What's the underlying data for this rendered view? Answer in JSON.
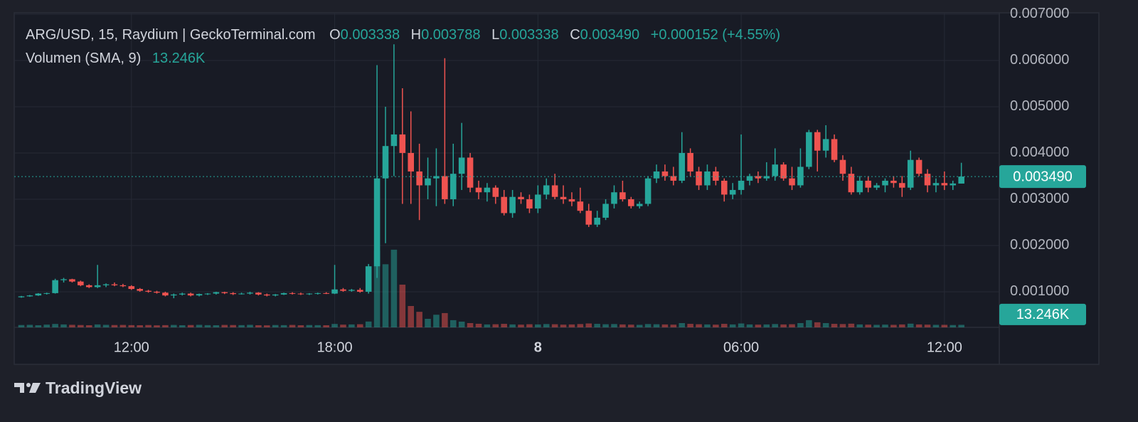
{
  "chart_data": {
    "type": "candlestick",
    "header": {
      "symbol": "ARG/USD, 15, Raydium | GeckoTerminal.com",
      "o_label": "O",
      "o": "0.003338",
      "h_label": "H",
      "h": "0.003788",
      "l_label": "L",
      "l": "0.003338",
      "c_label": "C",
      "c": "0.003490",
      "change": "+0.000152 (+4.55%)"
    },
    "volume_title": "Volumen (SMA, 9)",
    "volume_sma": {
      "value": 13246,
      "label": "13.246K"
    },
    "last_label": "0.003490",
    "footer": "TradingView",
    "up_color": "#26a69a",
    "down_color": "#ef5350",
    "grid": true,
    "x": [
      8.75,
      9,
      9.25,
      9.5,
      9.75,
      10,
      10.25,
      10.5,
      10.75,
      11,
      11.25,
      11.5,
      11.75,
      12,
      12.25,
      12.5,
      12.75,
      13,
      13.25,
      13.5,
      13.75,
      14,
      14.25,
      14.5,
      14.75,
      15,
      15.25,
      15.5,
      15.75,
      16,
      16.25,
      16.5,
      16.75,
      17,
      17.25,
      17.5,
      17.75,
      18,
      18.25,
      18.5,
      18.75,
      19,
      19.25,
      19.5,
      19.75,
      20,
      20.25,
      20.5,
      20.75,
      21,
      21.25,
      21.5,
      21.75,
      22,
      22.25,
      22.5,
      22.75,
      23,
      23.25,
      23.5,
      23.75,
      24,
      24.25,
      24.5,
      24.75,
      25,
      25.25,
      25.5,
      25.75,
      26,
      26.25,
      26.5,
      26.75,
      27,
      27.25,
      27.5,
      27.75,
      28,
      28.25,
      28.5,
      28.75,
      29,
      29.25,
      29.5,
      29.75,
      30,
      30.25,
      30.5,
      30.75,
      31,
      31.25,
      31.5,
      31.75,
      32,
      32.25,
      32.5,
      32.75,
      33,
      33.25,
      33.5,
      33.75,
      34,
      34.25,
      34.5,
      34.75,
      35,
      35.25,
      35.5,
      35.75,
      36,
      36.25,
      36.5
    ],
    "open": [
      0.00088,
      0.0009,
      0.00092,
      0.00096,
      0.00097,
      0.00125,
      0.00127,
      0.00122,
      0.00114,
      0.0011,
      0.00114,
      0.00116,
      0.00114,
      0.00112,
      0.00106,
      0.00102,
      0.001,
      0.00098,
      0.00092,
      0.00094,
      0.00096,
      0.00092,
      0.00095,
      0.00096,
      0.00099,
      0.00097,
      0.00095,
      0.00096,
      0.00098,
      0.00094,
      0.00092,
      0.00094,
      0.00097,
      0.00096,
      0.00095,
      0.00096,
      0.00097,
      0.00096,
      0.00105,
      0.00102,
      0.00104,
      0.001,
      0.00155,
      0.00345,
      0.00415,
      0.0044,
      0.004,
      0.0036,
      0.0033,
      0.00345,
      0.0035,
      0.003,
      0.00355,
      0.0039,
      0.00325,
      0.00315,
      0.00325,
      0.00305,
      0.0027,
      0.00305,
      0.003,
      0.0028,
      0.0031,
      0.0033,
      0.00305,
      0.003,
      0.00295,
      0.00275,
      0.00245,
      0.0026,
      0.0029,
      0.00315,
      0.003,
      0.00285,
      0.0029,
      0.00345,
      0.0036,
      0.0035,
      0.0034,
      0.004,
      0.0036,
      0.0033,
      0.0036,
      0.0034,
      0.0031,
      0.0032,
      0.0034,
      0.0035,
      0.00345,
      0.0035,
      0.00375,
      0.00345,
      0.0033,
      0.0037,
      0.00445,
      0.00405,
      0.0043,
      0.00385,
      0.00355,
      0.00315,
      0.0034,
      0.00325,
      0.0033,
      0.0034,
      0.00335,
      0.00325,
      0.00385,
      0.00355,
      0.0033,
      0.00335,
      0.0033,
      0.003338
    ],
    "high": [
      0.00091,
      0.00093,
      0.00097,
      0.00098,
      0.00128,
      0.0013,
      0.00128,
      0.00124,
      0.00116,
      0.00158,
      0.00118,
      0.0012,
      0.00117,
      0.00114,
      0.00108,
      0.00104,
      0.00102,
      0.001,
      0.00096,
      0.00098,
      0.00098,
      0.00096,
      0.00097,
      0.001,
      0.001,
      0.00099,
      0.00098,
      0.001,
      0.00099,
      0.00096,
      0.00095,
      0.00098,
      0.00099,
      0.00098,
      0.00097,
      0.00098,
      0.00099,
      0.00158,
      0.00108,
      0.00106,
      0.00108,
      0.0016,
      0.0059,
      0.005,
      0.00635,
      0.0054,
      0.0049,
      0.0042,
      0.0039,
      0.0041,
      0.00605,
      0.0042,
      0.00465,
      0.004,
      0.0034,
      0.00335,
      0.0033,
      0.0032,
      0.0032,
      0.00315,
      0.0031,
      0.0033,
      0.00345,
      0.00355,
      0.0033,
      0.00315,
      0.00325,
      0.0029,
      0.00275,
      0.003,
      0.0033,
      0.0034,
      0.00305,
      0.00295,
      0.0035,
      0.00375,
      0.00375,
      0.0037,
      0.00445,
      0.0041,
      0.0037,
      0.00375,
      0.0037,
      0.00345,
      0.00335,
      0.0044,
      0.00355,
      0.0036,
      0.0038,
      0.0041,
      0.0038,
      0.0037,
      0.0041,
      0.0045,
      0.0045,
      0.0046,
      0.0044,
      0.00395,
      0.0037,
      0.0035,
      0.0035,
      0.00335,
      0.00345,
      0.0035,
      0.0035,
      0.00405,
      0.0039,
      0.00365,
      0.00345,
      0.0036,
      0.0034,
      0.003788
    ],
    "low": [
      0.00087,
      0.00089,
      0.00091,
      0.00094,
      0.00096,
      0.0012,
      0.0012,
      0.00112,
      0.00108,
      0.00108,
      0.0011,
      0.00112,
      0.0011,
      0.00104,
      0.001,
      0.00098,
      0.00096,
      0.0009,
      0.00086,
      0.00092,
      0.0009,
      0.0009,
      0.00093,
      0.00094,
      0.00095,
      0.00093,
      0.00094,
      0.00094,
      0.00092,
      0.0009,
      0.0009,
      0.00093,
      0.00094,
      0.00093,
      0.00093,
      0.00094,
      0.00095,
      0.00095,
      0.001,
      0.001,
      0.00098,
      0.00096,
      0.0013,
      0.00205,
      0.0035,
      0.0029,
      0.0029,
      0.00255,
      0.003,
      0.00285,
      0.0029,
      0.00285,
      0.0032,
      0.00315,
      0.003,
      0.00295,
      0.0029,
      0.00265,
      0.0026,
      0.0029,
      0.0027,
      0.0027,
      0.003,
      0.003,
      0.0029,
      0.00285,
      0.0027,
      0.0024,
      0.0024,
      0.00255,
      0.0028,
      0.00295,
      0.0028,
      0.0028,
      0.00285,
      0.00335,
      0.0034,
      0.0033,
      0.00335,
      0.0035,
      0.0032,
      0.0032,
      0.0033,
      0.00295,
      0.003,
      0.0031,
      0.0033,
      0.00335,
      0.0034,
      0.0034,
      0.0034,
      0.0032,
      0.00325,
      0.00365,
      0.0036,
      0.0039,
      0.0038,
      0.0034,
      0.0031,
      0.0031,
      0.00315,
      0.0032,
      0.00315,
      0.00325,
      0.00305,
      0.0032,
      0.0035,
      0.00315,
      0.00315,
      0.0032,
      0.0032,
      0.003338
    ],
    "close": [
      0.0009,
      0.00092,
      0.00096,
      0.00097,
      0.00125,
      0.00127,
      0.00122,
      0.00114,
      0.0011,
      0.00114,
      0.00116,
      0.00114,
      0.00112,
      0.00106,
      0.00102,
      0.001,
      0.00098,
      0.00092,
      0.00094,
      0.00096,
      0.00092,
      0.00095,
      0.00096,
      0.00099,
      0.00097,
      0.00095,
      0.00096,
      0.00098,
      0.00094,
      0.00092,
      0.00094,
      0.00097,
      0.00096,
      0.00095,
      0.00096,
      0.00097,
      0.00096,
      0.00105,
      0.00102,
      0.00104,
      0.001,
      0.00155,
      0.00345,
      0.00415,
      0.0044,
      0.004,
      0.0036,
      0.0033,
      0.00345,
      0.0035,
      0.003,
      0.00355,
      0.0039,
      0.00325,
      0.00315,
      0.00325,
      0.00305,
      0.0027,
      0.00305,
      0.003,
      0.0028,
      0.0031,
      0.0033,
      0.00305,
      0.003,
      0.00295,
      0.00275,
      0.00245,
      0.0026,
      0.0029,
      0.00315,
      0.003,
      0.00285,
      0.0029,
      0.00345,
      0.0036,
      0.0035,
      0.0034,
      0.004,
      0.0036,
      0.0033,
      0.0036,
      0.0034,
      0.0031,
      0.0032,
      0.0034,
      0.0035,
      0.00345,
      0.0035,
      0.00375,
      0.00345,
      0.0033,
      0.0037,
      0.00445,
      0.00405,
      0.0043,
      0.00385,
      0.00355,
      0.00315,
      0.0034,
      0.00325,
      0.0033,
      0.0034,
      0.00335,
      0.00325,
      0.00385,
      0.00355,
      0.0033,
      0.00335,
      0.0033,
      0.00334,
      0.00349
    ],
    "volume": [
      2400,
      2600,
      2200,
      2800,
      3500,
      3000,
      2600,
      2400,
      2200,
      3000,
      2600,
      2400,
      2500,
      2300,
      2200,
      2400,
      2100,
      2300,
      2500,
      2200,
      2400,
      2600,
      2300,
      2200,
      2500,
      2400,
      2300,
      2600,
      2200,
      2100,
      2400,
      2300,
      2500,
      2200,
      2400,
      2300,
      2200,
      3500,
      2800,
      3000,
      3200,
      6000,
      79000,
      65000,
      80000,
      44000,
      22000,
      16000,
      8800,
      13000,
      14700,
      7400,
      5900,
      4400,
      3700,
      3000,
      3200,
      3600,
      3000,
      2800,
      3200,
      3000,
      3400,
      3200,
      2800,
      3000,
      3400,
      4000,
      3600,
      3200,
      3400,
      3000,
      2800,
      2600,
      3400,
      3200,
      3000,
      2800,
      4400,
      3600,
      3200,
      3000,
      2800,
      3600,
      3000,
      4000,
      3000,
      2800,
      3000,
      3400,
      3000,
      3200,
      4400,
      7400,
      5200,
      4400,
      3600,
      3400,
      3800,
      3000,
      2800,
      2600,
      2800,
      2600,
      3000,
      3800,
      3000,
      2800,
      2600,
      2600,
      2400,
      2600
    ],
    "xlim": [
      8.54,
      37.62
    ],
    "xticks": [
      {
        "value": 12,
        "label": "12:00"
      },
      {
        "value": 18,
        "label": "18:00"
      },
      {
        "value": 24,
        "label": "8"
      },
      {
        "value": 30,
        "label": "06:00"
      },
      {
        "value": 36,
        "label": "12:00"
      }
    ],
    "ylim": [
      0.00023,
      0.00703
    ],
    "yticks": [
      {
        "value": 0.001,
        "label": "0.001000"
      },
      {
        "value": 0.002,
        "label": "0.002000"
      },
      {
        "value": 0.003,
        "label": "0.003000"
      },
      {
        "value": 0.004,
        "label": "0.004000"
      },
      {
        "value": 0.005,
        "label": "0.005000"
      },
      {
        "value": 0.006,
        "label": "0.006000"
      },
      {
        "value": 0.007,
        "label": "0.007000"
      }
    ],
    "volume_lim": [
      0,
      324000
    ]
  }
}
